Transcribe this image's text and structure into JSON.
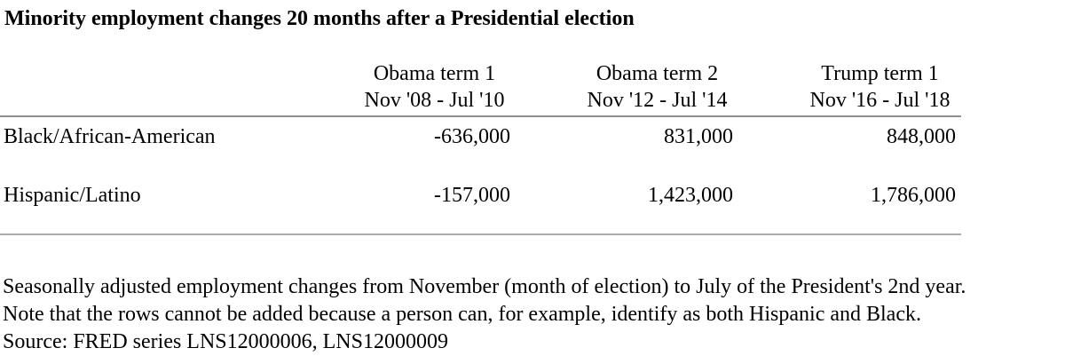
{
  "title": "Minority employment changes 20 months after a Presidential election",
  "table": {
    "columns": [
      {
        "label": "Obama term 1",
        "period": "Nov '08 - Jul '10"
      },
      {
        "label": "Obama term 2",
        "period": "Nov '12 - Jul '14"
      },
      {
        "label": "Trump term 1",
        "period": "Nov '16 - Jul '18"
      }
    ],
    "rows": [
      {
        "label": "Black/African-American",
        "values": [
          "-636,000",
          "831,000",
          "848,000"
        ]
      },
      {
        "label": "Hispanic/Latino",
        "values": [
          "-157,000",
          "1,423,000",
          "1,786,000"
        ]
      }
    ]
  },
  "notes": [
    "Seasonally adjusted employment changes from November (month of election) to July of the President's 2nd year.",
    "Note that the rows cannot be added because a person can, for example, identify as both Hispanic and Black.",
    "Source: FRED series LNS12000006, LNS12000009"
  ],
  "colors": {
    "text": "#000000",
    "background": "#ffffff",
    "rule_top": "#8f8f8f",
    "rule_bottom": "#ababab"
  },
  "chart_data": {
    "type": "table",
    "title": "Minority employment changes 20 months after a Presidential election",
    "categories": [
      "Obama term 1 (Nov '08 - Jul '10)",
      "Obama term 2 (Nov '12 - Jul '14)",
      "Trump term 1 (Nov '16 - Jul '18)"
    ],
    "series": [
      {
        "name": "Black/African-American",
        "values": [
          -636000,
          831000,
          848000
        ]
      },
      {
        "name": "Hispanic/Latino",
        "values": [
          -157000,
          1423000,
          1786000
        ]
      }
    ],
    "value_format": "signed integer with thousands separators",
    "notes": [
      "Seasonally adjusted employment changes from November (month of election) to July of the President's 2nd year.",
      "Note that the rows cannot be added because a person can, for example, identify as both Hispanic and Black.",
      "Source: FRED series LNS12000006, LNS12000009"
    ]
  }
}
